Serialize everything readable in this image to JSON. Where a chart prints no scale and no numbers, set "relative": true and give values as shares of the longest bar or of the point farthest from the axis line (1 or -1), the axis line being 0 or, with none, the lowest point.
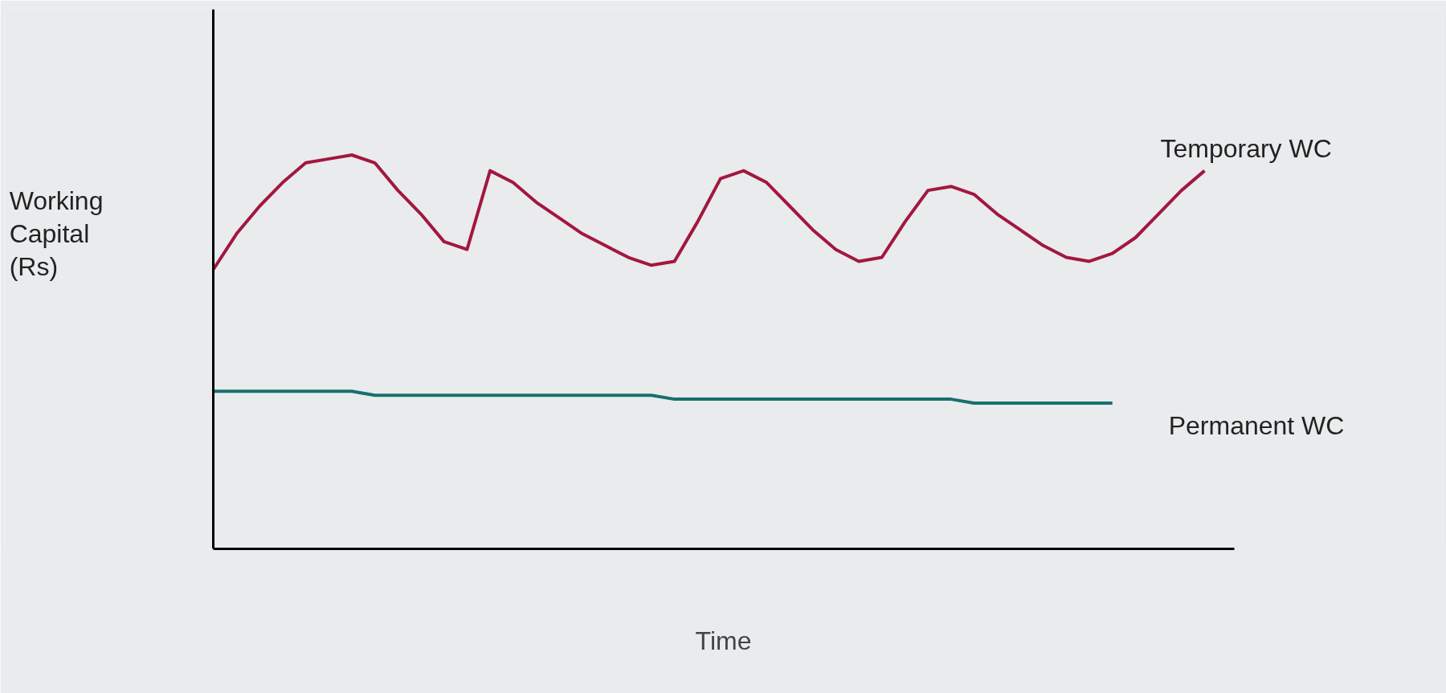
{
  "chart_data": {
    "type": "line",
    "relative": true,
    "xlabel": "Time",
    "ylabel": "Working\nCapital\n(Rs)",
    "categories": [
      null,
      null,
      null,
      null,
      null,
      null,
      null,
      null,
      null,
      null,
      null,
      null,
      null,
      null,
      null,
      null,
      null,
      null,
      null,
      null,
      null,
      null,
      null,
      null,
      null,
      null,
      null,
      null,
      null,
      null,
      null,
      null,
      null,
      null,
      null,
      null,
      null,
      null,
      null,
      null,
      null,
      null,
      null,
      null
    ],
    "series": [
      {
        "name": "Temporary WC",
        "color": "#a3173f",
        "values": [
          0.71,
          0.8,
          0.87,
          0.93,
          0.98,
          0.99,
          1.0,
          0.98,
          0.91,
          0.85,
          0.78,
          0.76,
          0.96,
          0.93,
          0.88,
          0.84,
          0.8,
          0.77,
          0.74,
          0.72,
          0.73,
          0.83,
          0.94,
          0.96,
          0.93,
          0.87,
          0.81,
          0.76,
          0.73,
          0.74,
          0.83,
          0.91,
          0.92,
          0.9,
          0.85,
          0.81,
          0.77,
          0.74,
          0.73,
          0.75,
          0.79,
          0.85,
          0.91,
          0.96
        ]
      },
      {
        "name": "Permanent WC",
        "color": "#17706e",
        "values": [
          0.4,
          0.4,
          0.4,
          0.4,
          0.4,
          0.4,
          0.4,
          0.39,
          0.39,
          0.39,
          0.39,
          0.39,
          0.39,
          0.39,
          0.39,
          0.39,
          0.39,
          0.39,
          0.39,
          0.39,
          0.38,
          0.38,
          0.38,
          0.38,
          0.38,
          0.38,
          0.38,
          0.38,
          0.38,
          0.38,
          0.38,
          0.38,
          0.38,
          0.37,
          0.37,
          0.37,
          0.37,
          0.37,
          0.37,
          0.37,
          null,
          null,
          null,
          null
        ]
      }
    ],
    "grid": false,
    "marker": "none",
    "line_style": "solid"
  }
}
